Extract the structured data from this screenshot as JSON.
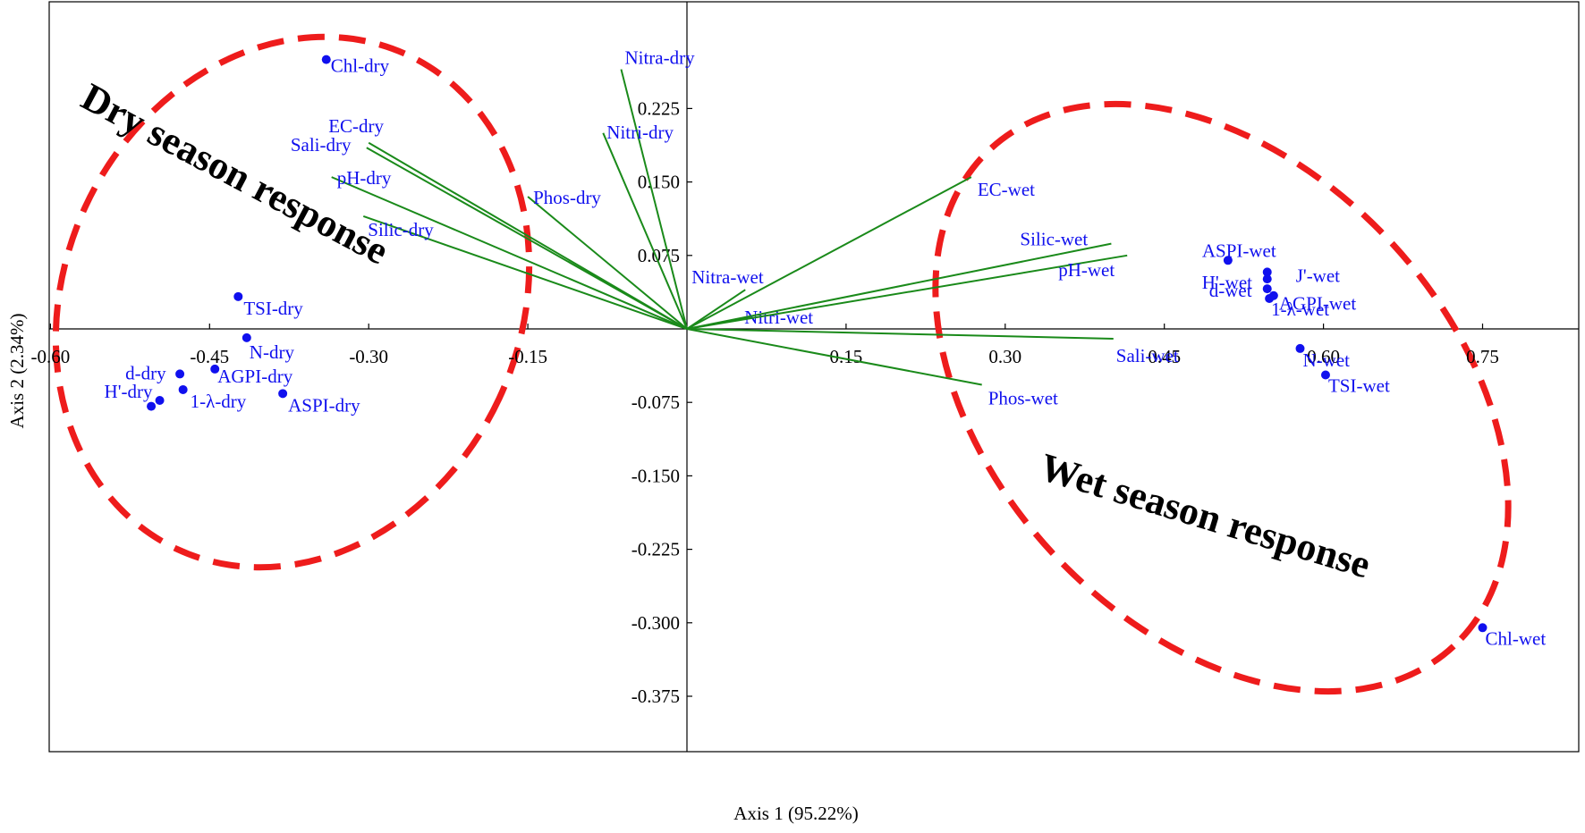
{
  "chart_data": {
    "type": "scatter",
    "subtype": "biplot",
    "xlabel": "Axis 1 (95.22%)",
    "ylabel": "Axis 2 (2.34%)",
    "xlim": [
      -0.6,
      0.82
    ],
    "ylim": [
      -0.41,
      0.275
    ],
    "x_ticks": [
      -0.6,
      -0.45,
      -0.3,
      -0.15,
      0.15,
      0.3,
      0.45,
      0.6,
      0.75
    ],
    "x_tick_labels": [
      "-0.60",
      "-0.45",
      "-0.30",
      "-0.15",
      "0.15",
      "0.30",
      "0.45",
      "0.60",
      "0.75"
    ],
    "y_ticks": [
      0.225,
      0.15,
      0.075,
      -0.075,
      -0.15,
      -0.225,
      -0.3,
      -0.375
    ],
    "y_tick_labels": [
      "0.225",
      "0.150",
      "0.075",
      "-0.075",
      "-0.150",
      "-0.225",
      "-0.300",
      "-0.375"
    ],
    "grid": false,
    "colors": {
      "vectors": "#1a8a1a",
      "points": "#1010ee",
      "labels": "#1010ee",
      "regions": "#ee1c1c"
    },
    "vectors": [
      {
        "label": "Nitra-dry",
        "x": -0.062,
        "y": 0.265
      },
      {
        "label": "Nitri-dry",
        "x": -0.079,
        "y": 0.2
      },
      {
        "label": "EC-dry",
        "x": -0.3,
        "y": 0.19
      },
      {
        "label": "Sali-dry",
        "x": -0.302,
        "y": 0.185
      },
      {
        "label": "pH-dry",
        "x": -0.335,
        "y": 0.155
      },
      {
        "label": "Silic-dry",
        "x": -0.305,
        "y": 0.115
      },
      {
        "label": "Phos-dry",
        "x": -0.15,
        "y": 0.135
      },
      {
        "label": "Nitra-wet",
        "x": 0.055,
        "y": 0.04
      },
      {
        "label": "Nitri-wet",
        "x": 0.06,
        "y": 0.012
      },
      {
        "label": "EC-wet",
        "x": 0.268,
        "y": 0.155
      },
      {
        "label": "Silic-wet",
        "x": 0.4,
        "y": 0.087
      },
      {
        "label": "pH-wet",
        "x": 0.415,
        "y": 0.075
      },
      {
        "label": "Sali-wet",
        "x": 0.402,
        "y": -0.01
      },
      {
        "label": "Phos-wet",
        "x": 0.278,
        "y": -0.057
      }
    ],
    "points": [
      {
        "label": "Chl-dry",
        "x": -0.34,
        "y": 0.275
      },
      {
        "label": "TSI-dry",
        "x": -0.423,
        "y": 0.033
      },
      {
        "label": "N-dry",
        "x": -0.415,
        "y": -0.009
      },
      {
        "label": "d-dry",
        "x": -0.478,
        "y": -0.046
      },
      {
        "label": "AGPI-dry",
        "x": -0.445,
        "y": -0.041
      },
      {
        "label": "H'-dry",
        "x": -0.497,
        "y": -0.073
      },
      {
        "label": "1-λ-dry",
        "x": -0.475,
        "y": -0.062
      },
      {
        "label": "ASPI-dry",
        "x": -0.381,
        "y": -0.066
      },
      {
        "x": -0.505,
        "y": -0.079
      },
      {
        "label": "ASPI-wet",
        "x": 0.51,
        "y": 0.07
      },
      {
        "label": "J'-wet",
        "x": 0.547,
        "y": 0.058
      },
      {
        "label": "H'-wet",
        "x": 0.547,
        "y": 0.051
      },
      {
        "label": "d-wet",
        "x": 0.547,
        "y": 0.041
      },
      {
        "label": "AGPI-wet",
        "x": 0.553,
        "y": 0.034
      },
      {
        "label": "1-λ-wet",
        "x": 0.549,
        "y": 0.031
      },
      {
        "label": "N-wet",
        "x": 0.578,
        "y": -0.02
      },
      {
        "label": "TSI-wet",
        "x": 0.602,
        "y": -0.047
      },
      {
        "label": "Chl-wet",
        "x": 0.75,
        "y": -0.305
      }
    ],
    "annotations": [
      {
        "text": "Dry season response"
      },
      {
        "text": "Wet season response"
      }
    ]
  }
}
